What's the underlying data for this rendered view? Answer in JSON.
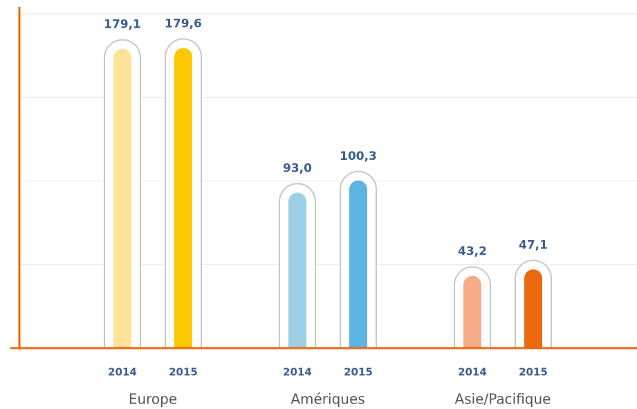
{
  "chart_data": {
    "type": "bar",
    "categories": [
      "Europe",
      "Amériques",
      "Asie/Pacifique"
    ],
    "series": [
      {
        "name": "2014",
        "colors": [
          "#fde39a",
          "#9dd0e6",
          "#f6ac88"
        ],
        "values": [
          179.1,
          93.0,
          43.2
        ],
        "value_labels": [
          "179,1",
          "93,0",
          "43,2"
        ]
      },
      {
        "name": "2015",
        "colors": [
          "#fdc800",
          "#5bb4e2",
          "#ec690f"
        ],
        "values": [
          179.6,
          100.3,
          47.1
        ],
        "value_labels": [
          "179,6",
          "100,3",
          "47,1"
        ]
      }
    ],
    "ylim": [
      0,
      200
    ],
    "yticks": [
      0,
      50,
      100,
      150,
      200
    ],
    "grid": true,
    "axis_color": "#ec690f",
    "label_color": "#3b5f8f"
  }
}
